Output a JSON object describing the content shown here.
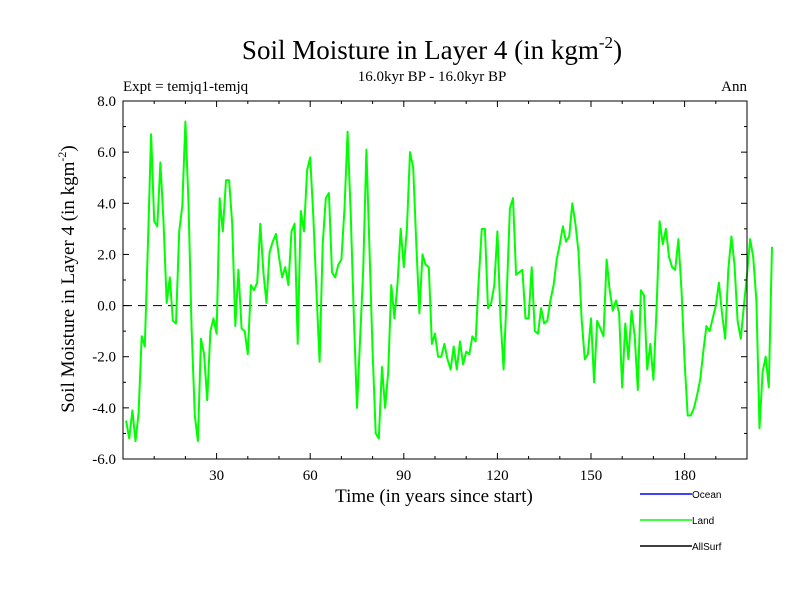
{
  "chart_data": {
    "type": "line",
    "title": "Soil Moisture in Layer 4 (in kgm",
    "title_sup": "-2",
    "title_close": ")",
    "subtitle": "16.0kyr BP - 16.0kyr BP",
    "left_label": "Expt = temjq1-temjq",
    "right_label": "Ann",
    "xlabel": "Time (in years since start)",
    "ylabel": "Soil Moisture in Layer 4 (in kgm",
    "ylabel_sup": "-2",
    "ylabel_close": ")",
    "xlim": [
      0,
      200
    ],
    "ylim": [
      -6,
      8
    ],
    "xticks": [
      30,
      60,
      90,
      120,
      150,
      180
    ],
    "xtick_labels": [
      "30",
      "60",
      "90",
      "120",
      "150",
      "180"
    ],
    "yticks": [
      -6,
      -4,
      -2,
      0,
      2,
      4,
      6,
      8
    ],
    "ytick_labels": [
      "-6.0",
      "-4.0",
      "-2.0",
      "0.0",
      "2.0",
      "4.0",
      "6.0",
      "8.0"
    ],
    "reference_line": 0,
    "legend": [
      {
        "name": "Ocean",
        "color": "#0000ff"
      },
      {
        "name": "Land",
        "color": "#00ff00"
      },
      {
        "name": "AllSurf",
        "color": "#000000"
      }
    ],
    "series": [
      {
        "name": "Land",
        "color": "#00ff00",
        "x_start": 1,
        "x_step": 1,
        "values": [
          -4.5,
          -5.2,
          -4.1,
          -5.3,
          -4.2,
          -1.2,
          -1.6,
          2.5,
          6.7,
          3.3,
          3.1,
          5.6,
          3.2,
          0.1,
          1.1,
          -0.6,
          -0.7,
          2.9,
          3.9,
          7.2,
          4.0,
          -0.9,
          -4.3,
          -5.3,
          -1.3,
          -1.9,
          -3.7,
          -1.0,
          -0.5,
          -1.1,
          4.2,
          2.9,
          4.9,
          4.9,
          3.2,
          -0.8,
          1.4,
          -0.9,
          -1.0,
          -1.9,
          0.8,
          0.6,
          0.9,
          3.2,
          1.3,
          0.1,
          2.1,
          2.5,
          2.8,
          1.9,
          1.1,
          1.5,
          0.8,
          2.9,
          3.2,
          -1.5,
          3.7,
          2.9,
          5.3,
          5.8,
          3.5,
          0.6,
          -2.2,
          2.4,
          4.2,
          4.4,
          1.3,
          1.1,
          1.6,
          1.8,
          3.8,
          6.8,
          3.5,
          -0.5,
          -4.0,
          -1.3,
          1.4,
          6.1,
          2.2,
          -1.8,
          -5.0,
          -5.2,
          -2.4,
          -4.0,
          -2.6,
          0.8,
          -0.5,
          0.9,
          3.0,
          1.5,
          3.0,
          6.0,
          5.4,
          2.4,
          -0.3,
          2.0,
          1.6,
          1.5,
          -1.5,
          -1.1,
          -2.0,
          -2.0,
          -1.5,
          -2.1,
          -2.5,
          -1.6,
          -2.5,
          -1.4,
          -2.3,
          -1.8,
          -1.9,
          -1.2,
          -1.4,
          1.0,
          3.0,
          3.0,
          -0.1,
          0.1,
          0.8,
          2.9,
          -0.5,
          -2.5,
          0.5,
          3.8,
          4.2,
          1.2,
          1.3,
          1.4,
          -0.5,
          -0.5,
          1.5,
          -1.0,
          -1.1,
          -0.1,
          -0.7,
          -0.6,
          0.2,
          0.8,
          1.8,
          2.4,
          3.1,
          2.5,
          2.7,
          4.0,
          3.2,
          2.1,
          -0.5,
          -2.1,
          -1.9,
          -0.5,
          -3.0,
          -0.6,
          -0.9,
          -1.2,
          1.8,
          0.6,
          -0.2,
          0.2,
          -0.3,
          -3.2,
          -0.7,
          -2.1,
          -0.2,
          -1.2,
          -3.3,
          0.6,
          0.4,
          -2.5,
          -1.5,
          -2.9,
          -0.2,
          3.3,
          2.4,
          3.0,
          1.9,
          1.5,
          1.4,
          2.6,
          0.6,
          -2.2,
          -4.3,
          -4.3,
          -4.0,
          -3.5,
          -2.9,
          -1.8,
          -0.8,
          -1.0,
          -0.5,
          0.0,
          0.9,
          -0.3,
          -1.3,
          1.4,
          2.7,
          1.6,
          -0.6,
          -1.3,
          0.0,
          1.2,
          2.6,
          1.9,
          0.2,
          -4.8,
          -2.6,
          -2.0,
          -3.2,
          2.3
        ]
      }
    ]
  }
}
